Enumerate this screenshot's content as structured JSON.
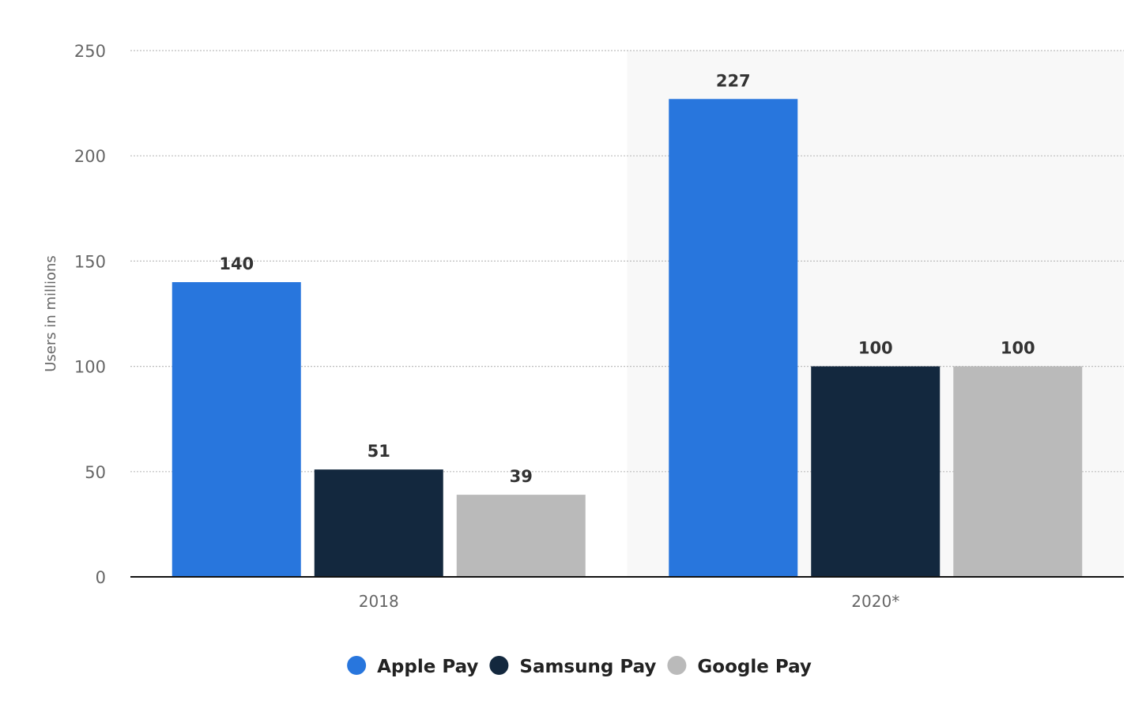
{
  "chart_data": {
    "type": "bar",
    "title": "",
    "xlabel": "",
    "ylabel": "Users in millions",
    "ylim": [
      0,
      250
    ],
    "yticks": [
      0,
      50,
      100,
      150,
      200,
      250
    ],
    "grid": true,
    "legend_position": "bottom",
    "categories": [
      "2018",
      "2020*"
    ],
    "highlighted_category": "2020*",
    "series": [
      {
        "name": "Apple Pay",
        "color": "#2876dd",
        "values": [
          140,
          227
        ]
      },
      {
        "name": "Samsung Pay",
        "color": "#13283e",
        "values": [
          51,
          100
        ]
      },
      {
        "name": "Google Pay",
        "color": "#bababa",
        "values": [
          39,
          100
        ]
      }
    ]
  }
}
